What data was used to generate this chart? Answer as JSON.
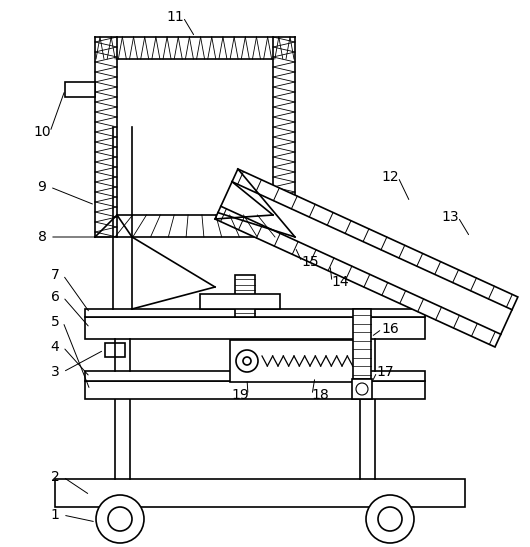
{
  "bg_color": "#ffffff",
  "line_color": "#000000",
  "label_color": "#000000",
  "fig_width": 5.3,
  "fig_height": 5.47,
  "dpi": 100
}
